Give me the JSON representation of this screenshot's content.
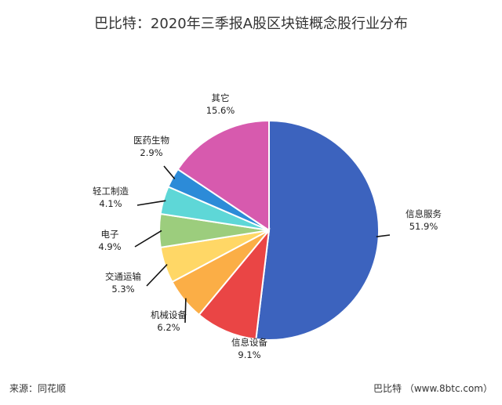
{
  "title": "巴比特：2020年三季报A股区块链概念股行业分布",
  "footer": {
    "source": "来源：同花顺",
    "credit": "巴比特 （www.8btc.com）"
  },
  "chart_data": {
    "type": "pie",
    "title": "巴比特：2020年三季报A股区块链概念股行业分布",
    "slices": [
      {
        "label": "信息服务",
        "value": 51.9,
        "value_label": "51.9%",
        "color": "#3C63BE"
      },
      {
        "label": "信息设备",
        "value": 9.1,
        "value_label": "9.1%",
        "color": "#EA4545"
      },
      {
        "label": "机械设备",
        "value": 6.2,
        "value_label": "6.2%",
        "color": "#FBAE46"
      },
      {
        "label": "交通运输",
        "value": 5.3,
        "value_label": "5.3%",
        "color": "#FFD766"
      },
      {
        "label": "电子",
        "value": 4.9,
        "value_label": "4.9%",
        "color": "#9CCD7D"
      },
      {
        "label": "轻工制造",
        "value": 4.1,
        "value_label": "4.1%",
        "color": "#5ED7D7"
      },
      {
        "label": "医药生物",
        "value": 2.9,
        "value_label": "2.9%",
        "color": "#2C8BD8"
      },
      {
        "label": "其它",
        "value": 15.6,
        "value_label": "15.6%",
        "color": "#D75AAE"
      }
    ]
  }
}
